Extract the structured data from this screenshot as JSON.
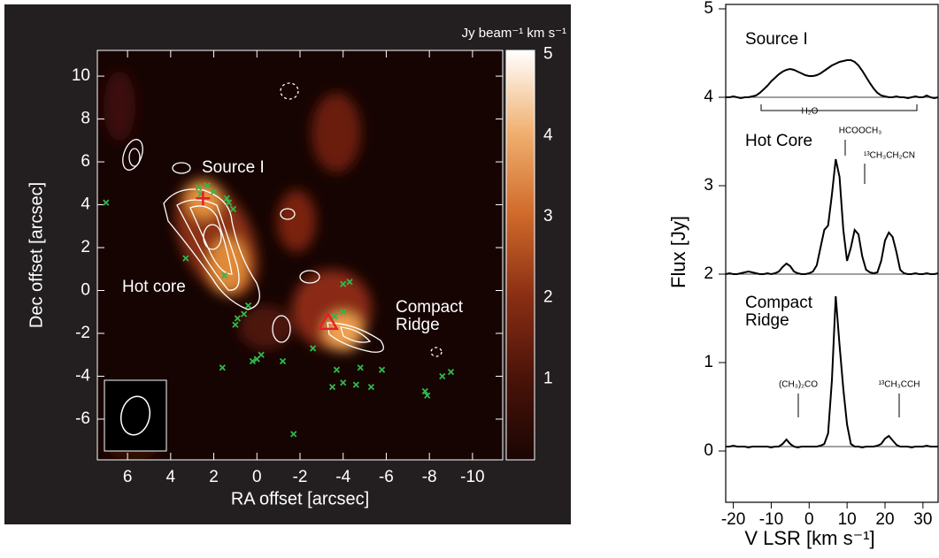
{
  "chart_data": [
    {
      "type": "image",
      "xlabel": "RA offset [arcsec]",
      "ylabel": "Dec offset [arcsec]",
      "xlim": [
        7.4,
        -11.4
      ],
      "ylim": [
        -7.9,
        11.2
      ],
      "xticks": [
        6,
        4,
        2,
        0,
        -2,
        -4,
        -6,
        -8,
        -10
      ],
      "yticks": [
        10,
        8,
        6,
        4,
        2,
        0,
        -2,
        -4,
        -6
      ],
      "colorbar": {
        "label": "Jy beam⁻¹ km s⁻¹",
        "lim": [
          0,
          5.05
        ],
        "ticks": [
          1,
          2,
          3,
          4,
          5
        ]
      },
      "annotations": [
        "Source I",
        "Hot core",
        "Compact Ridge"
      ],
      "markers": {
        "color": "#2fb84c",
        "x": [
          7.0,
          2.7,
          2.3,
          2.0,
          1.4,
          1.1,
          1.3,
          3.3,
          1.5,
          2.6,
          0.9,
          0.6,
          1.0,
          0.4,
          0.0,
          -0.2,
          0.2,
          -1.2,
          1.6,
          -2.6,
          -3.6,
          -4.0,
          -4.3,
          -4.0,
          -3.7,
          -3.5,
          -4.0,
          -4.6,
          -4.8,
          -5.3,
          -5.8,
          -7.8,
          -7.9,
          -8.6,
          -9.0,
          -1.7
        ],
        "y": [
          4.1,
          4.8,
          4.9,
          4.6,
          4.3,
          3.8,
          4.1,
          1.5,
          0.7,
          4.5,
          -1.3,
          -1.1,
          -1.6,
          -0.7,
          -3.2,
          -3.0,
          -3.3,
          -3.3,
          -3.6,
          -2.7,
          -1.2,
          -1.0,
          0.4,
          0.3,
          -3.7,
          -4.5,
          -4.3,
          -4.4,
          -3.6,
          -4.5,
          -3.7,
          -4.7,
          -4.9,
          -4.0,
          -3.8,
          -6.7
        ]
      },
      "positions": {
        "color": "#e3202b",
        "cross": [
          2.5,
          4.3
        ],
        "triangle": [
          -3.3,
          -1.5
        ]
      }
    },
    {
      "type": "line",
      "xlabel": "V LSR [km s⁻¹]",
      "ylabel": "Flux [Jy]",
      "xlim": [
        -22,
        34
      ],
      "ylim": [
        -0.58,
        5.05
      ],
      "xticks": [
        -20,
        -10,
        0,
        10,
        20,
        30
      ],
      "yticks": [
        0,
        1,
        2,
        3,
        4,
        5
      ],
      "x": [
        -22,
        -21,
        -20,
        -19,
        -18,
        -17,
        -16,
        -15,
        -14,
        -13,
        -12,
        -11,
        -10,
        -9,
        -8,
        -7,
        -6,
        -5,
        -4,
        -3,
        -2,
        -1,
        0,
        1,
        2,
        3,
        4,
        5,
        6,
        7,
        8,
        9,
        10,
        11,
        12,
        13,
        14,
        15,
        16,
        17,
        18,
        19,
        20,
        21,
        22,
        23,
        24,
        25,
        26,
        27,
        28,
        29,
        30,
        31,
        32,
        33,
        34
      ],
      "baselines": [
        4,
        2,
        0.05
      ],
      "series": [
        {
          "name": "Source I",
          "color": "#000000",
          "values": [
            4.0,
            4.0,
            4.01,
            4.0,
            3.99,
            4.0,
            4.0,
            4.01,
            4.02,
            4.05,
            4.09,
            4.13,
            4.18,
            4.22,
            4.26,
            4.29,
            4.31,
            4.32,
            4.31,
            4.29,
            4.27,
            4.25,
            4.24,
            4.24,
            4.25,
            4.27,
            4.3,
            4.33,
            4.36,
            4.38,
            4.4,
            4.41,
            4.42,
            4.42,
            4.4,
            4.36,
            4.3,
            4.23,
            4.16,
            4.1,
            4.05,
            4.02,
            4.01,
            4.0,
            4.0,
            4.01,
            4.0,
            4.0,
            3.99,
            4.0,
            4.01,
            4.0,
            4.0,
            4.02,
            4.0,
            3.99,
            4.0
          ]
        },
        {
          "name": "Hot Core",
          "color": "#000000",
          "values": [
            2.0,
            2.01,
            2.0,
            2.0,
            2.01,
            2.02,
            2.03,
            2.02,
            2.01,
            2.0,
            2.0,
            2.01,
            2.0,
            2.01,
            2.03,
            2.08,
            2.12,
            2.09,
            2.03,
            2.01,
            2.0,
            2.0,
            2.01,
            2.03,
            2.1,
            2.3,
            2.5,
            2.55,
            2.9,
            3.3,
            3.1,
            2.5,
            2.15,
            2.3,
            2.5,
            2.45,
            2.2,
            2.05,
            2.02,
            2.01,
            2.02,
            2.15,
            2.38,
            2.47,
            2.42,
            2.25,
            2.05,
            2.01,
            2.0,
            2.0,
            2.01,
            2.0,
            2.0,
            2.01,
            2.0,
            2.0,
            2.01
          ]
        },
        {
          "name": "Compact Ridge",
          "color": "#000000",
          "values": [
            0.05,
            0.05,
            0.06,
            0.05,
            0.05,
            0.05,
            0.04,
            0.05,
            0.05,
            0.05,
            0.05,
            0.05,
            0.04,
            0.05,
            0.05,
            0.08,
            0.13,
            0.08,
            0.05,
            0.04,
            0.05,
            0.05,
            0.05,
            0.05,
            0.05,
            0.06,
            0.08,
            0.2,
            0.8,
            1.75,
            1.2,
            0.7,
            0.3,
            0.08,
            0.05,
            0.05,
            0.04,
            0.05,
            0.05,
            0.05,
            0.06,
            0.08,
            0.14,
            0.17,
            0.12,
            0.07,
            0.05,
            0.05,
            0.05,
            0.04,
            0.05,
            0.05,
            0.05,
            0.06,
            0.05,
            0.05,
            0.05
          ]
        }
      ],
      "annotations": [
        "H₂O",
        "HCOOCH₃",
        "¹³CH₃CH₂CN",
        "(CH₃)₂CO",
        "¹³CH₃CCH"
      ]
    }
  ]
}
